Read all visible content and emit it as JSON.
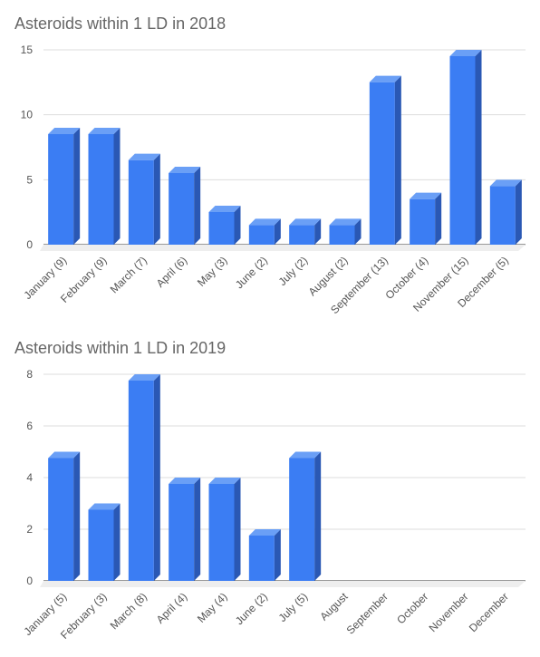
{
  "chart_data": [
    {
      "type": "bar3d",
      "title": "Asteroids within 1 LD in 2018",
      "categories": [
        "January (9)",
        "February (9)",
        "March (7)",
        "April (6)",
        "May (3)",
        "June (2)",
        "July (2)",
        "August (2)",
        "September (13)",
        "October (4)",
        "November (15)",
        "December (5)"
      ],
      "values": [
        9,
        9,
        7,
        6,
        3,
        2,
        2,
        2,
        13,
        4,
        15,
        5
      ],
      "color": "#3b7df3",
      "ylim": [
        0,
        15
      ],
      "yticks": [
        0,
        5,
        10,
        15
      ],
      "grid": true
    },
    {
      "type": "bar3d",
      "title": "Asteroids within 1 LD in 2019",
      "categories": [
        "January (5)",
        "February (3)",
        "March (8)",
        "April (4)",
        "May (4)",
        "June (2)",
        "July (5)",
        "August",
        "September",
        "October",
        "November",
        "December"
      ],
      "values": [
        5,
        3,
        8,
        4,
        4,
        2,
        5,
        null,
        null,
        null,
        null,
        null
      ],
      "color": "#3b7df3",
      "ylim": [
        0,
        8
      ],
      "yticks": [
        0,
        2,
        4,
        6,
        8
      ],
      "grid": true
    }
  ]
}
